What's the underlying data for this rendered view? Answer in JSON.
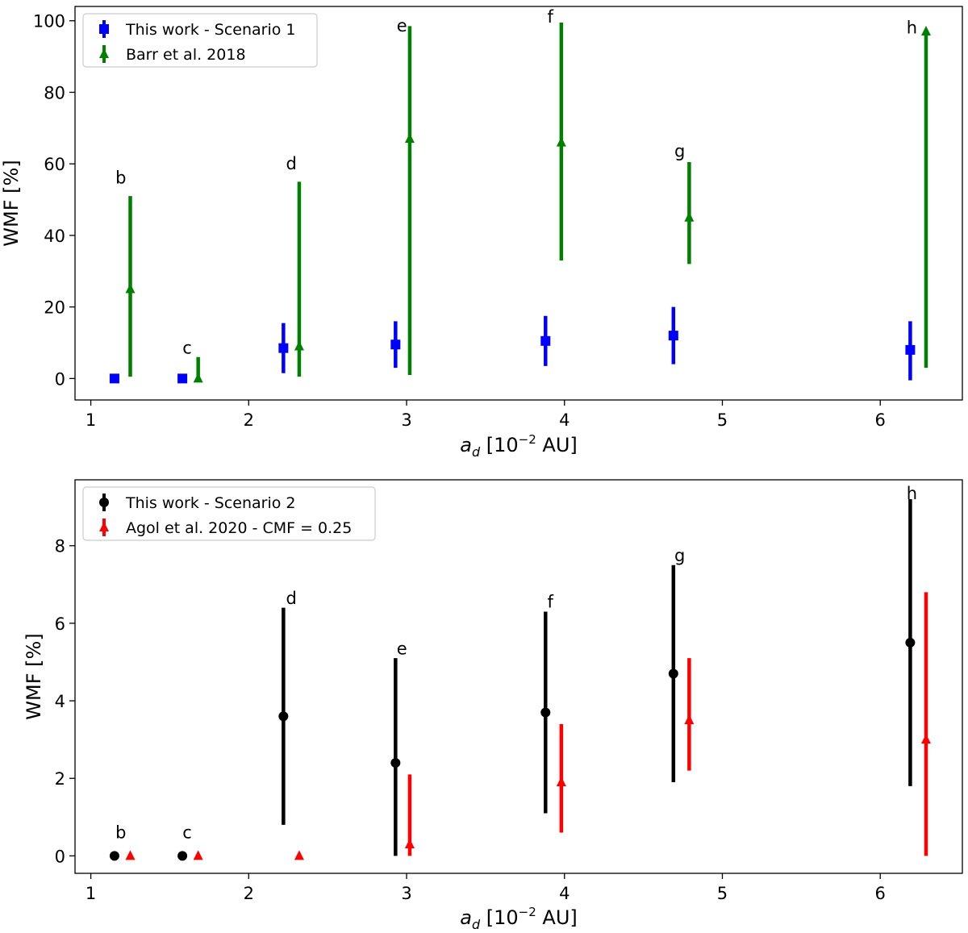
{
  "chart_data": [
    {
      "type": "scatter",
      "panel": "top",
      "ylabel": "WMF [%]",
      "xlabel_main": "a",
      "xlabel_sub": "d",
      "xlabel_rest_pre": " [10",
      "xlabel_exp": "−2",
      "xlabel_rest_post": " AU]",
      "xlim": [
        0.9,
        6.52
      ],
      "ylim": [
        -6,
        104
      ],
      "xticks": [
        1,
        2,
        3,
        4,
        5,
        6
      ],
      "yticks": [
        0,
        20,
        40,
        60,
        80,
        100
      ],
      "legend_position": "top-left",
      "series": [
        {
          "name": "This work - Scenario 1",
          "color": "#0000ff",
          "marker": "square",
          "points": [
            {
              "x": 1.15,
              "y": 0,
              "ylo": 0,
              "yhi": 0
            },
            {
              "x": 1.58,
              "y": 0,
              "ylo": 0,
              "yhi": 0
            },
            {
              "x": 2.22,
              "y": 8.5,
              "ylo": 1.5,
              "yhi": 15.5
            },
            {
              "x": 2.93,
              "y": 9.5,
              "ylo": 3,
              "yhi": 16
            },
            {
              "x": 3.88,
              "y": 10.5,
              "ylo": 3.5,
              "yhi": 17.5
            },
            {
              "x": 4.69,
              "y": 12,
              "ylo": 4,
              "yhi": 20
            },
            {
              "x": 6.19,
              "y": 8,
              "ylo": -0.5,
              "yhi": 16
            }
          ]
        },
        {
          "name": "Barr et al. 2018",
          "color": "#008000",
          "marker": "triangle",
          "points": [
            {
              "x": 1.25,
              "y": 25,
              "ylo": 0.5,
              "yhi": 51
            },
            {
              "x": 1.68,
              "y": 0,
              "ylo": 0,
              "yhi": 6
            },
            {
              "x": 2.32,
              "y": 9,
              "ylo": 0.5,
              "yhi": 55
            },
            {
              "x": 3.02,
              "y": 67,
              "ylo": 1,
              "yhi": 98.5
            },
            {
              "x": 3.98,
              "y": 66,
              "ylo": 33,
              "yhi": 99.5
            },
            {
              "x": 4.79,
              "y": 45,
              "ylo": 32,
              "yhi": 60.5
            },
            {
              "x": 6.29,
              "y": 97,
              "ylo": 3,
              "yhi": 97
            }
          ]
        }
      ],
      "annotations": [
        {
          "text": "b",
          "x": 1.19,
          "y": 54.5
        },
        {
          "text": "c",
          "x": 1.61,
          "y": 7
        },
        {
          "text": "d",
          "x": 2.27,
          "y": 58.5
        },
        {
          "text": "e",
          "x": 2.97,
          "y": 97
        },
        {
          "text": "f",
          "x": 3.91,
          "y": 99.5
        },
        {
          "text": "g",
          "x": 4.73,
          "y": 62
        },
        {
          "text": "h",
          "x": 6.2,
          "y": 96.5
        }
      ]
    },
    {
      "type": "scatter",
      "panel": "bottom",
      "ylabel": "WMF [%]",
      "xlabel_main": "a",
      "xlabel_sub": "d",
      "xlabel_rest_pre": " [10",
      "xlabel_exp": "−2",
      "xlabel_rest_post": " AU]",
      "xlim": [
        0.9,
        6.52
      ],
      "ylim": [
        -0.45,
        9.7
      ],
      "xticks": [
        1,
        2,
        3,
        4,
        5,
        6
      ],
      "yticks": [
        0,
        2,
        4,
        6,
        8
      ],
      "legend_position": "top-left",
      "series": [
        {
          "name": "This work - Scenario 2",
          "color": "#000000",
          "marker": "circle",
          "points": [
            {
              "x": 1.15,
              "y": 0,
              "ylo": 0,
              "yhi": 0
            },
            {
              "x": 1.58,
              "y": 0,
              "ylo": 0,
              "yhi": 0
            },
            {
              "x": 2.22,
              "y": 3.6,
              "ylo": 0.8,
              "yhi": 6.4
            },
            {
              "x": 2.93,
              "y": 2.4,
              "ylo": 0,
              "yhi": 5.1
            },
            {
              "x": 3.88,
              "y": 3.7,
              "ylo": 1.1,
              "yhi": 6.3
            },
            {
              "x": 4.69,
              "y": 4.7,
              "ylo": 1.9,
              "yhi": 7.5
            },
            {
              "x": 6.19,
              "y": 5.5,
              "ylo": 1.8,
              "yhi": 9.2
            }
          ]
        },
        {
          "name": "Agol et al. 2020 - CMF = 0.25",
          "color": "#ff0000",
          "marker": "triangle",
          "points": [
            {
              "x": 1.25,
              "y": 0,
              "ylo": 0,
              "yhi": 0
            },
            {
              "x": 1.68,
              "y": 0,
              "ylo": 0,
              "yhi": 0
            },
            {
              "x": 2.32,
              "y": 0,
              "ylo": 0,
              "yhi": 0
            },
            {
              "x": 3.02,
              "y": 0.3,
              "ylo": 0,
              "yhi": 2.1
            },
            {
              "x": 3.98,
              "y": 1.9,
              "ylo": 0.6,
              "yhi": 3.4
            },
            {
              "x": 4.79,
              "y": 3.5,
              "ylo": 2.2,
              "yhi": 5.1
            },
            {
              "x": 6.29,
              "y": 3,
              "ylo": 0,
              "yhi": 6.8
            }
          ]
        }
      ],
      "annotations": [
        {
          "text": "b",
          "x": 1.19,
          "y": 0.45
        },
        {
          "text": "c",
          "x": 1.61,
          "y": 0.45
        },
        {
          "text": "d",
          "x": 2.27,
          "y": 6.5
        },
        {
          "text": "e",
          "x": 2.97,
          "y": 5.2
        },
        {
          "text": "f",
          "x": 3.91,
          "y": 6.4
        },
        {
          "text": "g",
          "x": 4.73,
          "y": 7.6
        },
        {
          "text": "h",
          "x": 6.2,
          "y": 9.2
        }
      ]
    }
  ]
}
